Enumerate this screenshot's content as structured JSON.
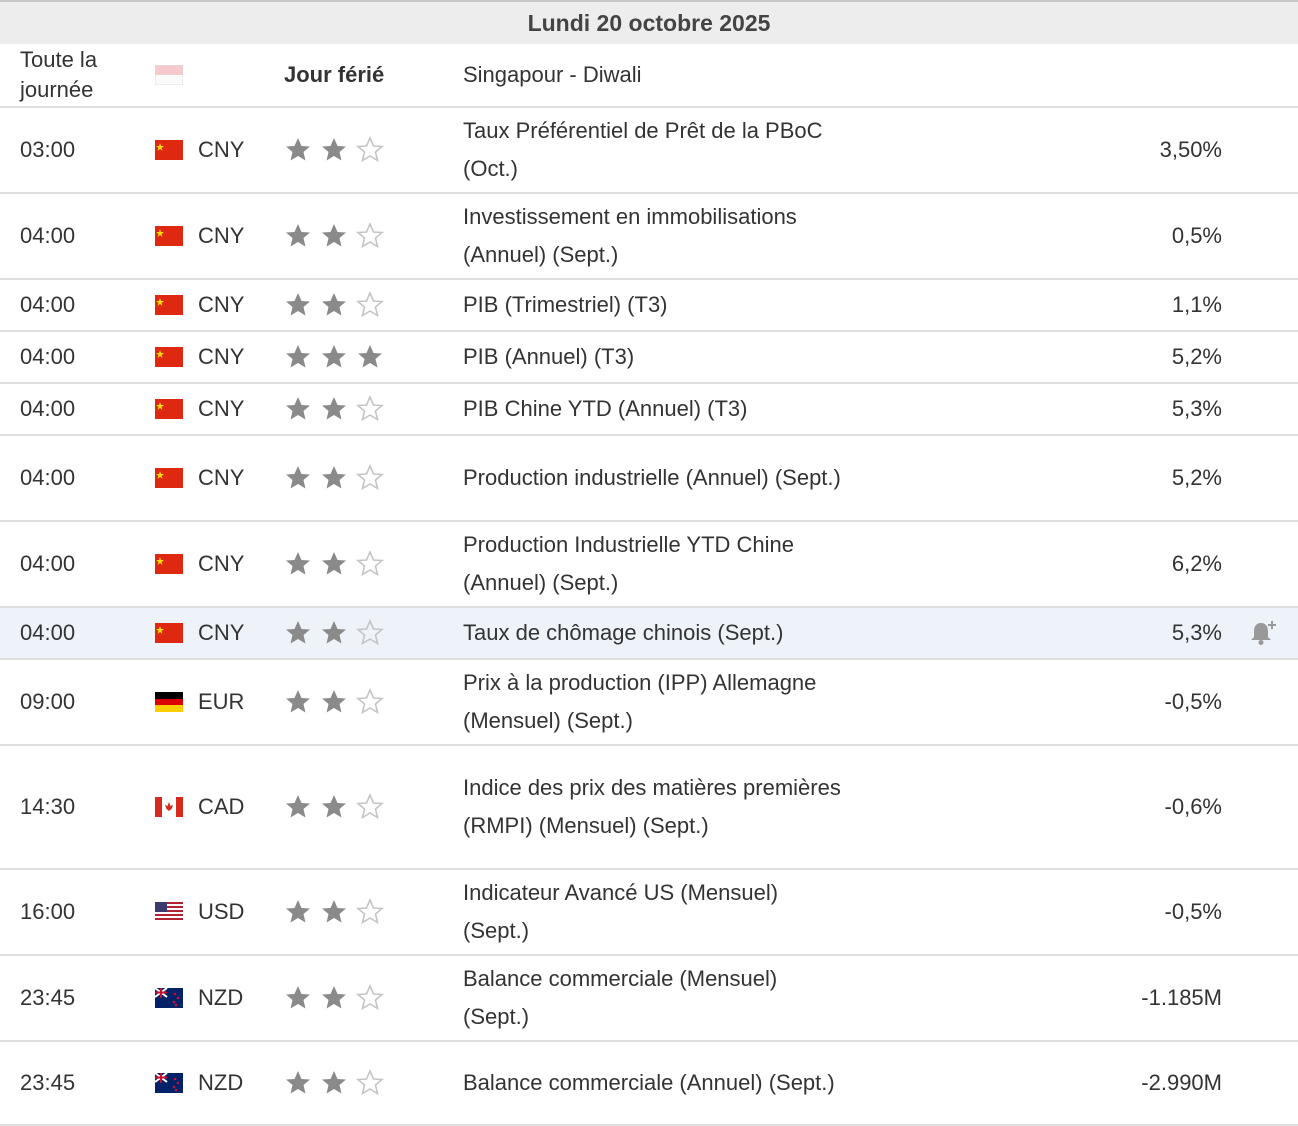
{
  "date_header": "Lundi 20 octobre 2025",
  "holiday": {
    "time": "Toute la journée",
    "flag": "sg",
    "label": "Jour férié",
    "event": "Singapour - Diwali"
  },
  "colors": {
    "row_highlight": "#eef3f9",
    "star_filled": "#8a8a8a",
    "star_empty": "#c4c4c4",
    "header_bg": "#ededed"
  },
  "icons": {
    "importance": "star-icon",
    "alert": "bell-plus-icon"
  },
  "events": [
    {
      "time": "03:00",
      "flag": "cn",
      "currency": "CNY",
      "importance": 2,
      "event": "Taux Préférentiel de Prêt de la PBoC (Oct.)",
      "actual": "3,50%"
    },
    {
      "time": "04:00",
      "flag": "cn",
      "currency": "CNY",
      "importance": 2,
      "event": "Investissement en immobilisations (Annuel) (Sept.)",
      "actual": "0,5%"
    },
    {
      "time": "04:00",
      "flag": "cn",
      "currency": "CNY",
      "importance": 2,
      "event": "PIB (Trimestriel) (T3)",
      "actual": "1,1%"
    },
    {
      "time": "04:00",
      "flag": "cn",
      "currency": "CNY",
      "importance": 3,
      "event": "PIB (Annuel) (T3)",
      "actual": "5,2%"
    },
    {
      "time": "04:00",
      "flag": "cn",
      "currency": "CNY",
      "importance": 2,
      "event": "PIB Chine YTD (Annuel) (T3)",
      "actual": "5,3%"
    },
    {
      "time": "04:00",
      "flag": "cn",
      "currency": "CNY",
      "importance": 2,
      "event": "Production industrielle (Annuel) (Sept.)",
      "actual": "5,2%"
    },
    {
      "time": "04:00",
      "flag": "cn",
      "currency": "CNY",
      "importance": 2,
      "event": "Production Industrielle YTD Chine (Annuel) (Sept.)",
      "actual": "6,2%"
    },
    {
      "time": "04:00",
      "flag": "cn",
      "currency": "CNY",
      "importance": 2,
      "event": "Taux de chômage chinois (Sept.)",
      "actual": "5,3%",
      "highlighted": true
    },
    {
      "time": "09:00",
      "flag": "de",
      "currency": "EUR",
      "importance": 2,
      "event": "Prix à la production (IPP) Allemagne (Mensuel) (Sept.)",
      "actual": "-0,5%"
    },
    {
      "time": "14:30",
      "flag": "ca",
      "currency": "CAD",
      "importance": 2,
      "event": "Indice des prix des matières premières (RMPI) (Mensuel) (Sept.)",
      "actual": "-0,6%"
    },
    {
      "time": "16:00",
      "flag": "us",
      "currency": "USD",
      "importance": 2,
      "event": "Indicateur Avancé US (Mensuel) (Sept.)",
      "actual": "-0,5%"
    },
    {
      "time": "23:45",
      "flag": "nz",
      "currency": "NZD",
      "importance": 2,
      "event": "Balance commerciale (Mensuel) (Sept.)",
      "actual": "-1.185M"
    },
    {
      "time": "23:45",
      "flag": "nz",
      "currency": "NZD",
      "importance": 2,
      "event": "Balance commerciale (Annuel) (Sept.)",
      "actual": "-2.990M"
    }
  ]
}
